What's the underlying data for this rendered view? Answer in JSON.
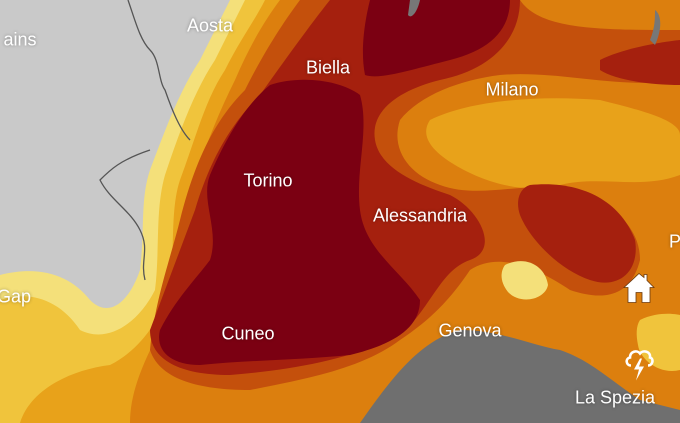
{
  "map": {
    "labels": [
      {
        "text": "ains",
        "key": "ains"
      },
      {
        "text": "Aosta",
        "key": "aosta"
      },
      {
        "text": "Biella",
        "key": "biella"
      },
      {
        "text": "Milano",
        "key": "milano"
      },
      {
        "text": "Torino",
        "key": "torino"
      },
      {
        "text": "Alessandria",
        "key": "alessandria"
      },
      {
        "text": "Gap",
        "key": "gap"
      },
      {
        "text": "Cuneo",
        "key": "cuneo"
      },
      {
        "text": "Genova",
        "key": "genova"
      },
      {
        "text": "La Spezia",
        "key": "la-spezia"
      },
      {
        "text": "P",
        "key": "p-partial"
      }
    ],
    "icons": [
      "home-icon",
      "thunderstorm-icon"
    ],
    "colors": {
      "land": "#c9c9c9",
      "sea": "#6f6f6f",
      "level1": "#f4e07a",
      "level2": "#f0c43c",
      "level3": "#e8a21a",
      "level4": "#dc7f0e",
      "level5": "#c4500c",
      "level6": "#a5200e",
      "level7": "#7b0012"
    }
  }
}
